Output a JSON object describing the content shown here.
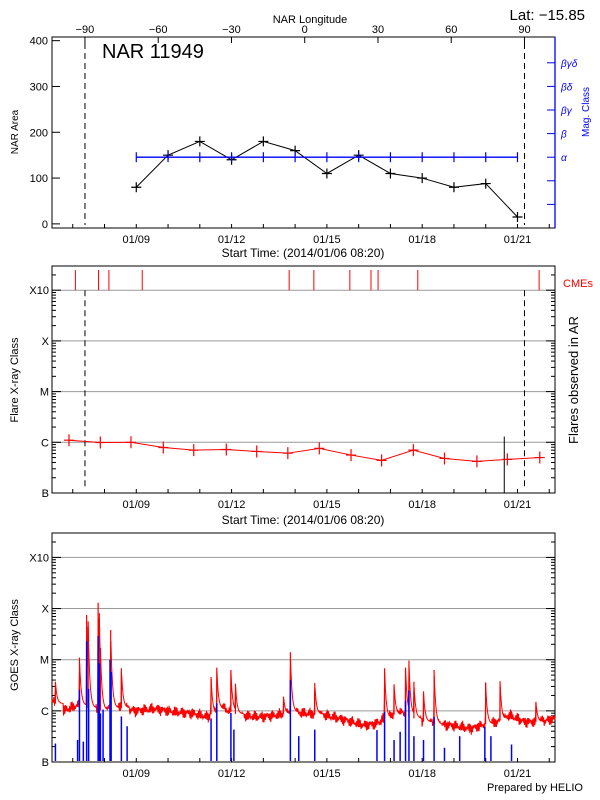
{
  "chart_data": [
    {
      "type": "line",
      "title": "NAR 11949",
      "latitude_label": "Lat: −15.85",
      "xlabel": "Start Time: (2014/01/06 08:20)",
      "xlim": [
        "2014-01-06T08:20",
        "2014-01-22T04:20"
      ],
      "x_ticks": [
        {
          "time": "2014-01-09T00:00",
          "label": "01/09"
        },
        {
          "time": "2014-01-12T00:00",
          "label": "01/12"
        },
        {
          "time": "2014-01-15T00:00",
          "label": "01/15"
        },
        {
          "time": "2014-01-18T00:00",
          "label": "01/18"
        },
        {
          "time": "2014-01-21T00:00",
          "label": "01/21"
        }
      ],
      "x2label": "NAR Longitude",
      "x2lim": [
        -103.5,
        102.5
      ],
      "x2_ticks": [
        {
          "value": -90,
          "label": "−90"
        },
        {
          "value": -60,
          "label": "−60"
        },
        {
          "value": -30,
          "label": "−30"
        },
        {
          "value": 0,
          "label": "0"
        },
        {
          "value": 30,
          "label": "30"
        },
        {
          "value": 60,
          "label": "60"
        },
        {
          "value": 90,
          "label": "90"
        }
      ],
      "limb_longitudes": [
        -90,
        90
      ],
      "ylabel": "NAR Area",
      "ylim": [
        -9,
        408
      ],
      "y_ticks": [
        {
          "value": 0,
          "label": "0"
        },
        {
          "value": 100,
          "label": "100"
        },
        {
          "value": 200,
          "label": "200"
        },
        {
          "value": 300,
          "label": "300"
        },
        {
          "value": 400,
          "label": "400"
        }
      ],
      "y2label": "Mag. Class",
      "y2_classes": [
        "",
        "",
        "α",
        "β",
        "βγ",
        "βδ",
        "βγδ"
      ],
      "series": [
        {
          "color": "#000000",
          "axis": "left",
          "x": [
            "2014-01-09T00:00",
            "2014-01-10T00:00",
            "2014-01-11T00:00",
            "2014-01-12T00:00",
            "2014-01-13T00:00",
            "2014-01-14T00:00",
            "2014-01-15T00:00",
            "2014-01-16T00:00",
            "2014-01-17T00:00",
            "2014-01-18T00:00",
            "2014-01-19T00:00",
            "2014-01-20T00:00",
            "2014-01-21T00:00"
          ],
          "values": [
            80,
            150,
            180,
            140,
            180,
            160,
            110,
            150,
            110,
            100,
            80,
            88,
            15
          ]
        },
        {
          "color": "#0000ff",
          "axis": "right",
          "x": [
            "2014-01-09T00:00",
            "2014-01-10T00:00",
            "2014-01-11T00:00",
            "2014-01-12T00:00",
            "2014-01-13T00:00",
            "2014-01-14T00:00",
            "2014-01-15T00:00",
            "2014-01-16T00:00",
            "2014-01-17T00:00",
            "2014-01-18T00:00",
            "2014-01-19T00:00",
            "2014-01-20T00:00",
            "2014-01-21T00:00"
          ],
          "values": [
            "α",
            "α",
            "α",
            "α",
            "α",
            "α",
            "α",
            "α",
            "α",
            "α",
            "α",
            "α",
            "α"
          ]
        }
      ]
    },
    {
      "type": "line",
      "xlabel": "Start Time: (2014/01/06 08:20)",
      "ylabel": "Flare X-ray Class",
      "y2label": "Flares observed in AR",
      "y_scale": "log",
      "ylim": [
        1e-07,
        0.003
      ],
      "y_ticks": [
        {
          "value": 1e-07,
          "label": "B"
        },
        {
          "value": 1e-06,
          "label": "C"
        },
        {
          "value": 1e-05,
          "label": "M"
        },
        {
          "value": 0.0001,
          "label": "X"
        },
        {
          "value": 0.001,
          "label": "X10"
        }
      ],
      "grid": true,
      "cme_label": "CMEs",
      "cme_color": "#ff0000",
      "cme_times": [
        "2014-01-07T02:00",
        "2014-01-07T19:30",
        "2014-01-08T03:20",
        "2014-01-09T04:30",
        "2014-01-13T19:30",
        "2014-01-14T14:10",
        "2014-01-15T17:20",
        "2014-01-16T09:20",
        "2014-01-16T14:40",
        "2014-01-17T20:40",
        "2014-01-21T16:20"
      ],
      "marker_line": {
        "time": "2014-01-20T14:00",
        "flux": 1.3e-06,
        "color": "#000000"
      },
      "series": [
        {
          "color": "#ff0000",
          "x": [
            "2014-01-06T21:10",
            "2014-01-07T20:50",
            "2014-01-08T20:00",
            "2014-01-09T20:25",
            "2014-01-10T19:25",
            "2014-01-11T20:00",
            "2014-01-12T19:00",
            "2014-01-13T18:30",
            "2014-01-14T18:15",
            "2014-01-15T18:15",
            "2014-01-16T17:20",
            "2014-01-17T17:20",
            "2014-01-18T16:50",
            "2014-01-19T17:20",
            "2014-01-20T16:20",
            "2014-01-21T16:50"
          ],
          "values": [
            1.1e-06,
            9.9e-07,
            1e-06,
            7.9e-07,
            7e-07,
            7.2e-07,
            6.6e-07,
            6.1e-07,
            7.6e-07,
            5.6e-07,
            4.4e-07,
            7e-07,
            4.8e-07,
            4.2e-07,
            4.6e-07,
            5e-07
          ]
        }
      ]
    },
    {
      "type": "line",
      "ylabel": "GOES X-ray Class",
      "y_scale": "log",
      "ylim": [
        1e-07,
        0.003
      ],
      "y_ticks": [
        {
          "value": 1e-07,
          "label": "B"
        },
        {
          "value": 1e-06,
          "label": "C"
        },
        {
          "value": 1e-05,
          "label": "M"
        },
        {
          "value": 0.0001,
          "label": "X"
        },
        {
          "value": 0.001,
          "label": "X10"
        }
      ],
      "grid": true,
      "credit": "Prepared by HELIO",
      "series": [
        {
          "color": "#ff0000",
          "kind": "background",
          "x": [
            "2014-01-06T09:30",
            "2014-01-06T16:40",
            "2014-01-07T04:10",
            "2014-01-07T18:40",
            "2014-01-08T09:00",
            "2014-01-08T23:25",
            "2014-01-09T13:50",
            "2014-01-10T04:15",
            "2014-01-10T18:40",
            "2014-01-11T06:10",
            "2014-01-11T14:50",
            "2014-01-12T05:15",
            "2014-01-12T22:30",
            "2014-01-13T10:00",
            "2014-01-13T21:35",
            "2014-01-14T09:05",
            "2014-01-14T23:30",
            "2014-01-15T13:55",
            "2014-01-16T04:20",
            "2014-01-16T12:55",
            "2014-01-16T21:35",
            "2014-01-17T09:05",
            "2014-01-17T17:45",
            "2014-01-18T05:15",
            "2014-01-18T22:35",
            "2014-01-19T13:00",
            "2014-01-20T00:30",
            "2014-01-20T09:10",
            "2014-01-20T17:50",
            "2014-01-21T05:20",
            "2014-01-21T16:50",
            "2014-01-22T04:20"
          ],
          "values": [
            1.5e-06,
            1e-06,
            1.3e-06,
            1e-06,
            1.2e-06,
            1e-06,
            1.1e-06,
            9.5e-07,
            8.9e-07,
            7.6e-07,
            1.2e-06,
            8.2e-07,
            7.6e-07,
            8.2e-07,
            9.5e-07,
            8.9e-07,
            8.2e-07,
            6.6e-07,
            5.2e-07,
            5.6e-07,
            7.6e-07,
            9.5e-07,
            7.1e-07,
            5.6e-07,
            5.2e-07,
            4.5e-07,
            5.6e-07,
            6.1e-07,
            8.2e-07,
            6.1e-07,
            6.1e-07,
            7.1e-07
          ]
        },
        {
          "color": "#ff0000",
          "kind": "peaks",
          "x": [
            "2014-01-06T10:55",
            "2014-01-07T05:05",
            "2014-01-07T10:30",
            "2014-01-07T11:40",
            "2014-01-07T19:10",
            "2014-01-07T20:05",
            "2014-01-07T20:55",
            "2014-01-08T04:40",
            "2014-01-08T12:45",
            "2014-01-11T08:30",
            "2014-01-11T12:50",
            "2014-01-11T23:30",
            "2014-01-12T02:55",
            "2014-01-13T15:15",
            "2014-01-13T20:25",
            "2014-01-14T14:50",
            "2014-01-16T19:35",
            "2014-01-17T02:45",
            "2014-01-17T11:25",
            "2014-01-17T14:00",
            "2014-01-17T17:45",
            "2014-01-18T01:00",
            "2014-01-18T09:00",
            "2014-01-19T23:55",
            "2014-01-20T10:50",
            "2014-01-21T13:55"
          ],
          "values": [
            3.7e-06,
            1.1e-05,
            7.5e-05,
            5.6e-05,
            0.00013,
            8.1e-05,
            1.7e-05,
            3.8e-05,
            6.8e-06,
            4.6e-06,
            7e-06,
            6.3e-06,
            3.4e-06,
            1.9e-06,
            1.4e-05,
            3.5e-06,
            6.8e-06,
            3.3e-06,
            7e-06,
            9.6e-06,
            3.7e-06,
            2.4e-06,
            6.3e-06,
            3.6e-06,
            3.8e-06,
            1.5e-06
          ]
        },
        {
          "color": "#0000ff",
          "kind": "short-channel",
          "x": [
            "2014-01-06T10:55",
            "2014-01-07T03:40",
            "2014-01-07T05:05",
            "2014-01-07T08:00",
            "2014-01-07T10:30",
            "2014-01-07T12:00",
            "2014-01-07T19:10",
            "2014-01-07T20:05",
            "2014-01-07T20:55",
            "2014-01-07T22:55",
            "2014-01-08T04:10",
            "2014-01-08T05:00",
            "2014-01-08T12:45",
            "2014-01-08T17:05",
            "2014-01-11T08:30",
            "2014-01-11T12:50",
            "2014-01-11T23:30",
            "2014-01-12T01:45",
            "2014-01-13T20:25",
            "2014-01-14T02:45",
            "2014-01-14T14:50",
            "2014-01-16T13:50",
            "2014-01-16T19:35",
            "2014-01-17T02:45",
            "2014-01-17T07:20",
            "2014-01-17T11:25",
            "2014-01-17T14:00",
            "2014-01-17T17:45",
            "2014-01-18T01:00",
            "2014-01-18T09:00",
            "2014-01-18T16:50",
            "2014-01-19T04:20",
            "2014-01-19T23:20",
            "2014-01-20T03:55",
            "2014-01-20T19:30"
          ],
          "values": [
            2.3e-07,
            2.7e-07,
            2.6e-06,
            2.5e-07,
            2.3e-05,
            2.7e-06,
            2.9e-05,
            8.5e-06,
            8.9e-07,
            1.06e-06,
            1e-05,
            5.8e-06,
            7.8e-07,
            5e-07,
            7.1e-07,
            1.4e-06,
            9.1e-07,
            4.3e-07,
            4e-06,
            3.2e-07,
            4.3e-07,
            4.2e-07,
            9.6e-07,
            2.7e-07,
            3.9e-07,
            1.6e-06,
            2.5e-06,
            3.2e-07,
            2.7e-07,
            7.6e-07,
            1.9e-07,
            3.2e-07,
            4.9e-07,
            3.2e-07,
            2.2e-07
          ]
        }
      ]
    }
  ]
}
